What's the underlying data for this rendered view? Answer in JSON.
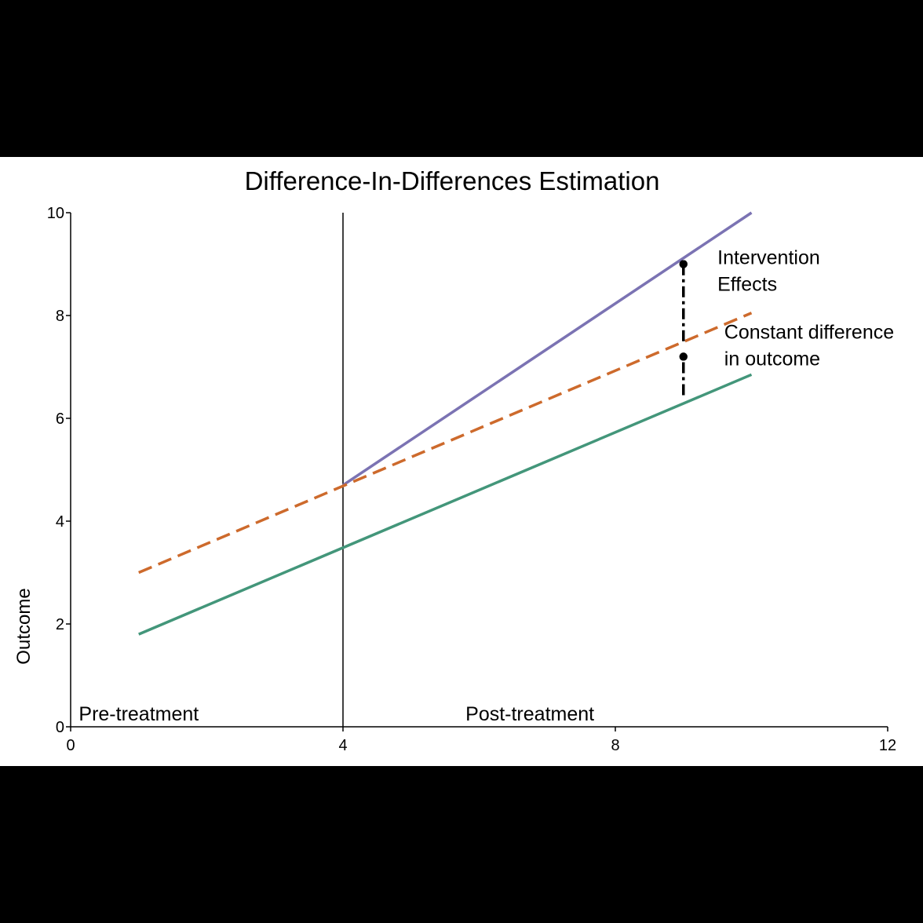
{
  "chart_data": {
    "type": "line",
    "title": "Difference-In-Differences Estimation",
    "xlabel": "",
    "ylabel": "Outcome",
    "xlim": [
      0,
      12
    ],
    "ylim": [
      0,
      10
    ],
    "xticks": [
      0,
      4,
      8,
      12
    ],
    "yticks": [
      0,
      2,
      4,
      6,
      8,
      10
    ],
    "grid": false,
    "legend": "none",
    "treatment_time": 4,
    "series": [
      {
        "color": "#7b73b3",
        "style": "solid",
        "x": [
          4,
          10
        ],
        "y": [
          4.7,
          10.0
        ]
      },
      {
        "color": "#cd6a2c",
        "style": "dashed",
        "x": [
          1,
          10
        ],
        "y": [
          3.0,
          8.05
        ]
      },
      {
        "color": "#43967a",
        "style": "solid",
        "x": [
          1,
          10
        ],
        "y": [
          1.8,
          6.85
        ]
      }
    ],
    "arrows": [
      {
        "x": 9,
        "y_from": 7.5,
        "y_to": 9.0,
        "style": "dash-dot"
      },
      {
        "x": 9,
        "y_from": 6.45,
        "y_to": 7.2,
        "style": "dash-dot"
      }
    ],
    "annotations": [
      {
        "lines": [
          "Intervention",
          "Effects"
        ],
        "x": 9.5,
        "y": 9.0
      },
      {
        "lines": [
          "Constant difference",
          "in outcome"
        ],
        "x": 9.6,
        "y": 7.55
      },
      {
        "lines": [
          "Pre-treatment"
        ],
        "x": 0.12,
        "y": 0.12
      },
      {
        "lines": [
          "Post-treatment"
        ],
        "x": 5.8,
        "y": 0.12
      }
    ]
  }
}
